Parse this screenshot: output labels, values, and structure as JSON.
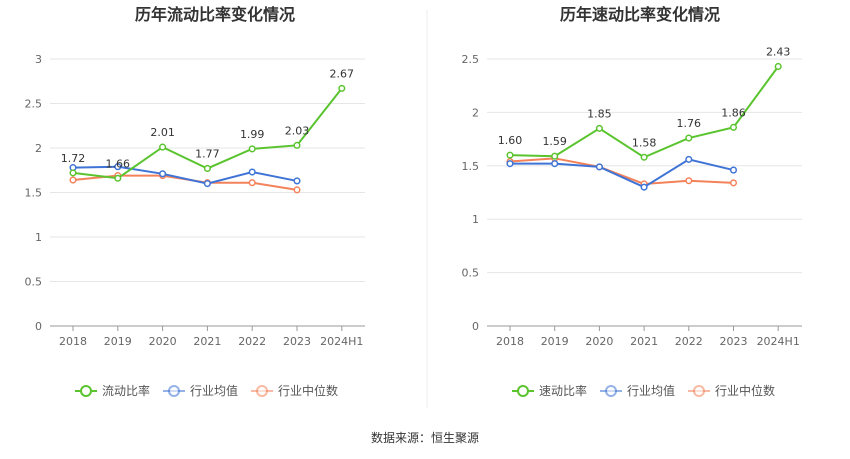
{
  "source_label": "数据来源：恒生聚源",
  "chart_data": [
    {
      "type": "line",
      "title": "历年流动比率变化情况",
      "categories": [
        "2018",
        "2019",
        "2020",
        "2021",
        "2022",
        "2023",
        "2024H1"
      ],
      "ylim": [
        0,
        3
      ],
      "yticks": [
        "0",
        "0.5",
        "1",
        "1.5",
        "2",
        "2.5",
        "3"
      ],
      "grid": true,
      "legend_position": "bottom",
      "series": [
        {
          "name": "流动比率",
          "color": "#5ac42e",
          "values": [
            1.72,
            1.66,
            2.01,
            1.77,
            1.99,
            2.03,
            2.67
          ],
          "labels": [
            "1.72",
            "1.66",
            "2.01",
            "1.77",
            "1.99",
            "2.03",
            "2.67"
          ]
        },
        {
          "name": "行业均值",
          "color": "#3f74d6",
          "values": [
            1.78,
            1.79,
            1.71,
            1.6,
            1.73,
            1.63,
            null
          ]
        },
        {
          "name": "行业中位数",
          "color": "#f3825a",
          "values": [
            1.64,
            1.69,
            1.69,
            1.61,
            1.61,
            1.53,
            null
          ]
        }
      ]
    },
    {
      "type": "line",
      "title": "历年速动比率变化情况",
      "categories": [
        "2018",
        "2019",
        "2020",
        "2021",
        "2022",
        "2023",
        "2024H1"
      ],
      "ylim": [
        0,
        2.5
      ],
      "yticks": [
        "0",
        "0.5",
        "1",
        "1.5",
        "2",
        "2.5"
      ],
      "grid": true,
      "legend_position": "bottom",
      "series": [
        {
          "name": "速动比率",
          "color": "#5ac42e",
          "values": [
            1.6,
            1.59,
            1.85,
            1.58,
            1.76,
            1.86,
            2.43
          ],
          "labels": [
            "1.60",
            "1.59",
            "1.85",
            "1.58",
            "1.76",
            "1.86",
            "2.43"
          ]
        },
        {
          "name": "行业均值",
          "color": "#3f74d6",
          "values": [
            1.52,
            1.52,
            1.49,
            1.3,
            1.56,
            1.46,
            null
          ]
        },
        {
          "name": "行业中位数",
          "color": "#f3825a",
          "values": [
            1.54,
            1.57,
            1.49,
            1.33,
            1.36,
            1.34,
            null
          ]
        }
      ]
    }
  ]
}
